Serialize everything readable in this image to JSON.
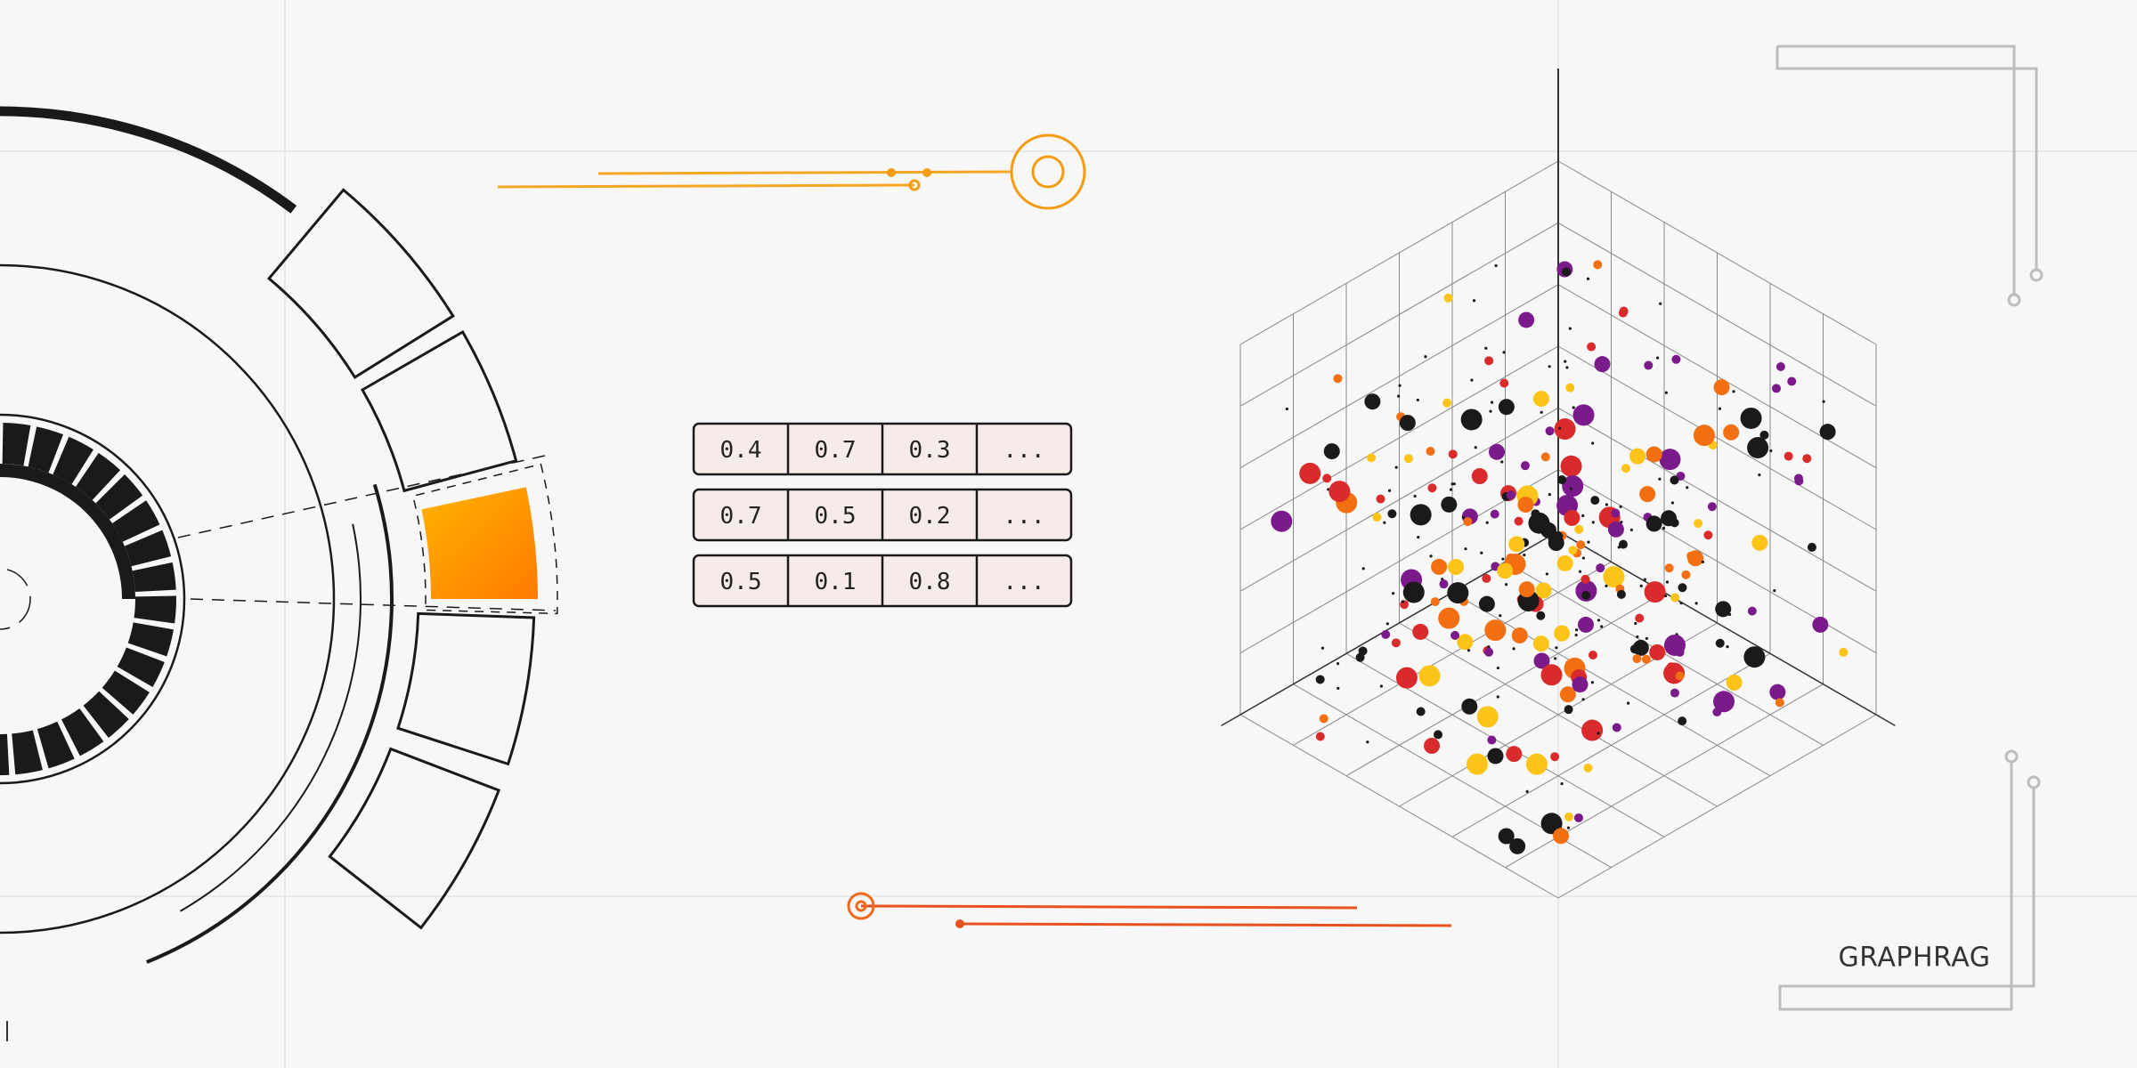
{
  "table": {
    "rows": [
      [
        "0.4",
        "0.7",
        "0.3",
        "..."
      ],
      [
        "0.7",
        "0.5",
        "0.2",
        "..."
      ],
      [
        "0.5",
        "0.1",
        "0.8",
        "..."
      ]
    ]
  },
  "label": "GRAPHRAG"
}
